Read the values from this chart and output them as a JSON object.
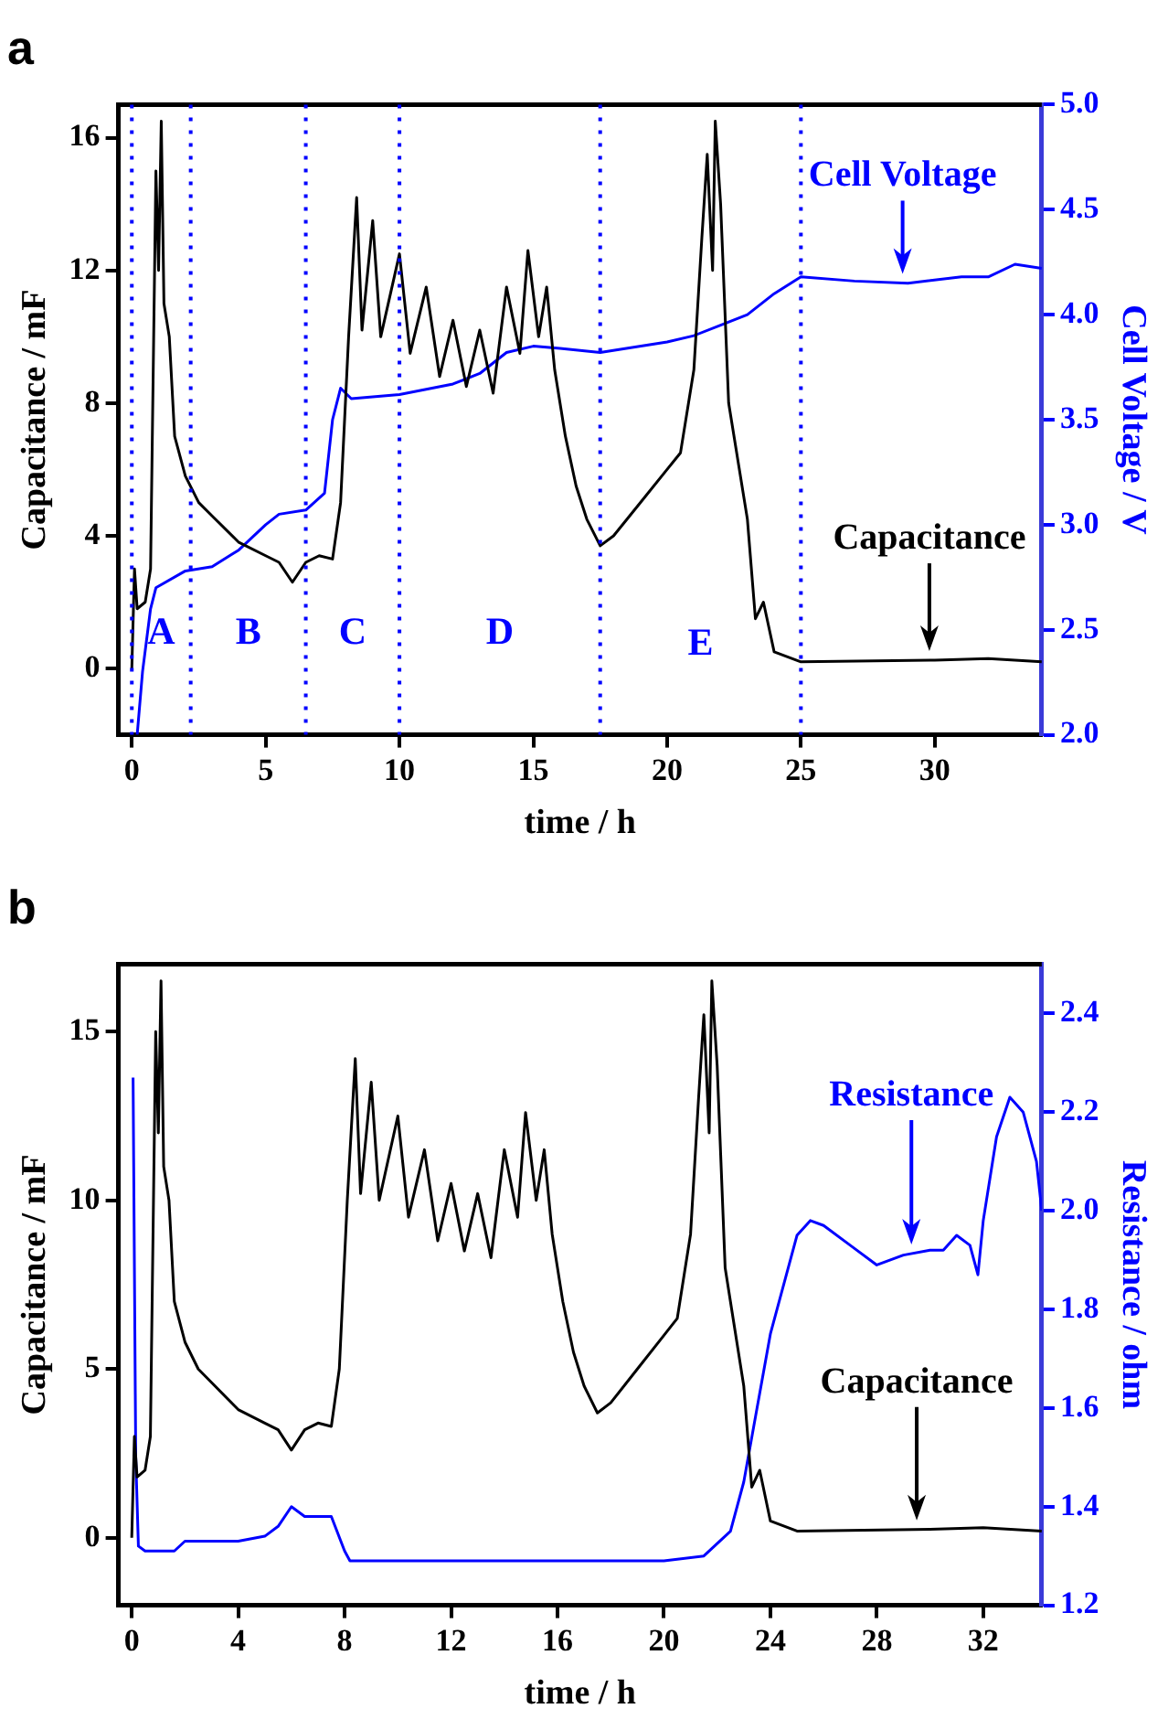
{
  "chart_data": [
    {
      "type": "line",
      "title": "a",
      "xlabel": "time / h",
      "ylabel": "Capacitance / mF",
      "y2label": "Cell Voltage / V",
      "xlim": [
        -0.5,
        34
      ],
      "xticks": [
        0,
        5,
        10,
        15,
        20,
        25,
        30
      ],
      "ylim": [
        -2,
        17
      ],
      "yticks": [
        0,
        4,
        8,
        12,
        16
      ],
      "y2lim": [
        2,
        5
      ],
      "y2ticks": [
        {
          "value": 2,
          "label": "2.0"
        },
        {
          "value": 2.5,
          "label": "2.5"
        },
        {
          "value": 3,
          "label": "3.0"
        },
        {
          "value": 3.5,
          "label": "3.5"
        },
        {
          "value": 4,
          "label": "4.0"
        },
        {
          "value": 4.5,
          "label": "4.5"
        },
        {
          "value": 5,
          "label": "5.0"
        }
      ],
      "grid": false,
      "legend": false,
      "marker": "none",
      "line_style": "solid",
      "series": [
        {
          "name": "Capacitance",
          "color": "#000000",
          "x": [
            0,
            0.1,
            0.2,
            0.5,
            0.7,
            0.9,
            1.0,
            1.1,
            1.2,
            1.4,
            1.6,
            2,
            2.5,
            3,
            4,
            5,
            5.5,
            6,
            6.5,
            7,
            7.5,
            7.8,
            8.1,
            8.4,
            8.6,
            9,
            9.3,
            10,
            10.4,
            11,
            11.5,
            12,
            12.5,
            13,
            13.5,
            14,
            14.5,
            14.8,
            15.2,
            15.5,
            15.8,
            16.2,
            16.6,
            17,
            17.5,
            18,
            19,
            20,
            20.5,
            21,
            21.3,
            21.5,
            21.7,
            21.8,
            22,
            22.3,
            22.6,
            23,
            23.3,
            23.6,
            24,
            25,
            30,
            32,
            34
          ],
          "values": [
            0,
            3,
            1.8,
            2,
            3,
            15,
            12,
            16.5,
            11,
            10,
            7,
            5.8,
            5,
            4.6,
            3.8,
            3.4,
            3.2,
            2.6,
            3.2,
            3.4,
            3.3,
            5,
            10,
            14.2,
            10.2,
            13.5,
            10,
            12.5,
            9.5,
            11.5,
            8.8,
            10.5,
            8.5,
            10.2,
            8.3,
            11.5,
            9.5,
            12.6,
            10,
            11.5,
            9,
            7,
            5.5,
            4.5,
            3.7,
            4,
            5,
            6,
            6.5,
            9,
            13,
            15.5,
            12,
            16.5,
            14,
            8,
            6.5,
            4.5,
            1.5,
            2,
            0.5,
            0.2,
            0.25,
            0.3,
            0.2
          ]
        },
        {
          "name": "Cell Voltage",
          "color": "#0000ff",
          "axis": "y2",
          "x": [
            0.2,
            0.4,
            0.7,
            0.9,
            2,
            3,
            4,
            5,
            5.5,
            6.5,
            7.2,
            7.5,
            7.8,
            8.2,
            10,
            12,
            13,
            14,
            15,
            16,
            17.5,
            20,
            21,
            22,
            23,
            24,
            25,
            27,
            29,
            31,
            32,
            33,
            34
          ],
          "values": [
            2.0,
            2.3,
            2.6,
            2.7,
            2.78,
            2.8,
            2.88,
            3.0,
            3.05,
            3.07,
            3.15,
            3.5,
            3.65,
            3.6,
            3.62,
            3.67,
            3.72,
            3.82,
            3.85,
            3.84,
            3.82,
            3.87,
            3.9,
            3.95,
            4.0,
            4.1,
            4.18,
            4.16,
            4.15,
            4.18,
            4.18,
            4.24,
            4.22
          ]
        }
      ],
      "ref_lines": [
        {
          "axis": "x",
          "value": 0,
          "color": "#0000ff",
          "line_style": "dotted"
        },
        {
          "axis": "x",
          "value": 2.2,
          "color": "#0000ff",
          "line_style": "dotted"
        },
        {
          "axis": "x",
          "value": 6.5,
          "color": "#0000ff",
          "line_style": "dotted"
        },
        {
          "axis": "x",
          "value": 10,
          "color": "#0000ff",
          "line_style": "dotted"
        },
        {
          "axis": "x",
          "value": 17.5,
          "color": "#0000ff",
          "line_style": "dotted"
        },
        {
          "axis": "x",
          "value": 25,
          "color": "#0000ff",
          "line_style": "dotted"
        }
      ],
      "annotations": [
        "A",
        "B",
        "C",
        "D",
        "E"
      ]
    },
    {
      "type": "line",
      "title": "b",
      "xlabel": "time / h",
      "ylabel": "Capacitance / mF",
      "y2label": "Resistance / ohm",
      "xlim": [
        -0.5,
        34.2
      ],
      "xticks": [
        0,
        4,
        8,
        12,
        16,
        20,
        24,
        28,
        32
      ],
      "ylim": [
        -2,
        17
      ],
      "yticks": [
        0,
        5,
        10,
        15
      ],
      "y2lim": [
        1.2,
        2.5
      ],
      "y2ticks": [
        1.2,
        1.4,
        1.6,
        1.8,
        {
          "value": 2,
          "label": "2.0"
        },
        2.2,
        2.4
      ],
      "grid": false,
      "legend": false,
      "marker": "none",
      "line_style": "solid",
      "series": [
        {
          "name": "Capacitance",
          "color": "#000000",
          "x": [
            0,
            0.1,
            0.2,
            0.5,
            0.7,
            0.9,
            1.0,
            1.1,
            1.2,
            1.4,
            1.6,
            2,
            2.5,
            3,
            4,
            5,
            5.5,
            6,
            6.5,
            7,
            7.5,
            7.8,
            8.1,
            8.4,
            8.6,
            9,
            9.3,
            10,
            10.4,
            11,
            11.5,
            12,
            12.5,
            13,
            13.5,
            14,
            14.5,
            14.8,
            15.2,
            15.5,
            15.8,
            16.2,
            16.6,
            17,
            17.5,
            18,
            19,
            20,
            20.5,
            21,
            21.3,
            21.5,
            21.7,
            21.8,
            22,
            22.3,
            22.6,
            23,
            23.3,
            23.6,
            24,
            25,
            30,
            32,
            34.2
          ],
          "values": [
            0,
            3,
            1.8,
            2,
            3,
            15,
            12,
            16.5,
            11,
            10,
            7,
            5.8,
            5,
            4.6,
            3.8,
            3.4,
            3.2,
            2.6,
            3.2,
            3.4,
            3.3,
            5,
            10,
            14.2,
            10.2,
            13.5,
            10,
            12.5,
            9.5,
            11.5,
            8.8,
            10.5,
            8.5,
            10.2,
            8.3,
            11.5,
            9.5,
            12.6,
            10,
            11.5,
            9,
            7,
            5.5,
            4.5,
            3.7,
            4,
            5,
            6,
            6.5,
            9,
            13,
            15.5,
            12,
            16.5,
            14,
            8,
            6.5,
            4.5,
            1.5,
            2,
            0.5,
            0.2,
            0.25,
            0.3,
            0.2
          ]
        },
        {
          "name": "Resistance",
          "color": "#0000ff",
          "axis": "y2",
          "x": [
            0.05,
            0.15,
            0.25,
            0.5,
            1,
            1.6,
            2,
            4,
            5,
            5.5,
            6,
            6.5,
            7.5,
            8,
            8.2,
            12,
            16,
            20,
            21.5,
            22.5,
            23,
            23.5,
            24,
            25,
            25.5,
            26,
            27,
            28,
            29,
            30,
            30.5,
            31,
            31.5,
            31.8,
            32,
            32.5,
            33,
            33.5,
            34,
            34.2
          ],
          "values": [
            2.27,
            1.5,
            1.32,
            1.31,
            1.31,
            1.31,
            1.33,
            1.33,
            1.34,
            1.36,
            1.4,
            1.38,
            1.38,
            1.31,
            1.29,
            1.29,
            1.29,
            1.29,
            1.3,
            1.35,
            1.45,
            1.6,
            1.75,
            1.95,
            1.98,
            1.97,
            1.93,
            1.89,
            1.91,
            1.92,
            1.92,
            1.95,
            1.93,
            1.87,
            1.98,
            2.15,
            2.23,
            2.2,
            2.1,
            2.0
          ]
        }
      ]
    }
  ]
}
